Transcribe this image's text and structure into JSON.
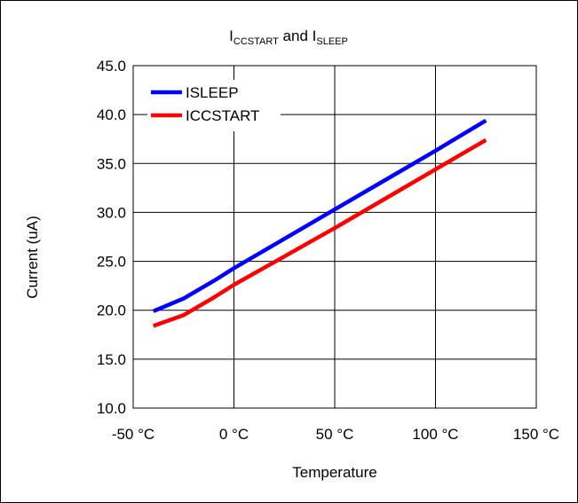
{
  "chart_data": {
    "type": "line",
    "title": {
      "part1_main": "I",
      "part1_sub": "CCSTART",
      "connector": " and ",
      "part2_main": "I",
      "part2_sub": "SLEEP"
    },
    "xlabel": "Temperature",
    "ylabel": "Current (uA)",
    "xlim": [
      -50,
      150
    ],
    "ylim": [
      10,
      45
    ],
    "x_ticks": [
      -50,
      0,
      50,
      100,
      150
    ],
    "x_tick_labels": [
      "-50 °C",
      "0 °C",
      "50 °C",
      "100 °C",
      "150 °C"
    ],
    "y_ticks": [
      10,
      15,
      20,
      25,
      30,
      35,
      40,
      45
    ],
    "y_tick_labels": [
      "10.0",
      "15.0",
      "20.0",
      "25.0",
      "30.0",
      "35.0",
      "40.0",
      "45.0"
    ],
    "grid": true,
    "legend_position": "top-left",
    "series": [
      {
        "name": "ISLEEP",
        "color": "#0000ff",
        "x": [
          -40,
          -25,
          -10,
          0,
          25,
          50,
          75,
          100,
          125
        ],
        "y": [
          19.9,
          21.2,
          23.0,
          24.3,
          27.3,
          30.3,
          33.3,
          36.3,
          39.4
        ]
      },
      {
        "name": "ICCSTART",
        "color": "#ff0000",
        "x": [
          -40,
          -25,
          -10,
          0,
          25,
          50,
          75,
          100,
          125
        ],
        "y": [
          18.4,
          19.5,
          21.3,
          22.6,
          25.5,
          28.4,
          31.4,
          34.4,
          37.4
        ]
      }
    ]
  }
}
